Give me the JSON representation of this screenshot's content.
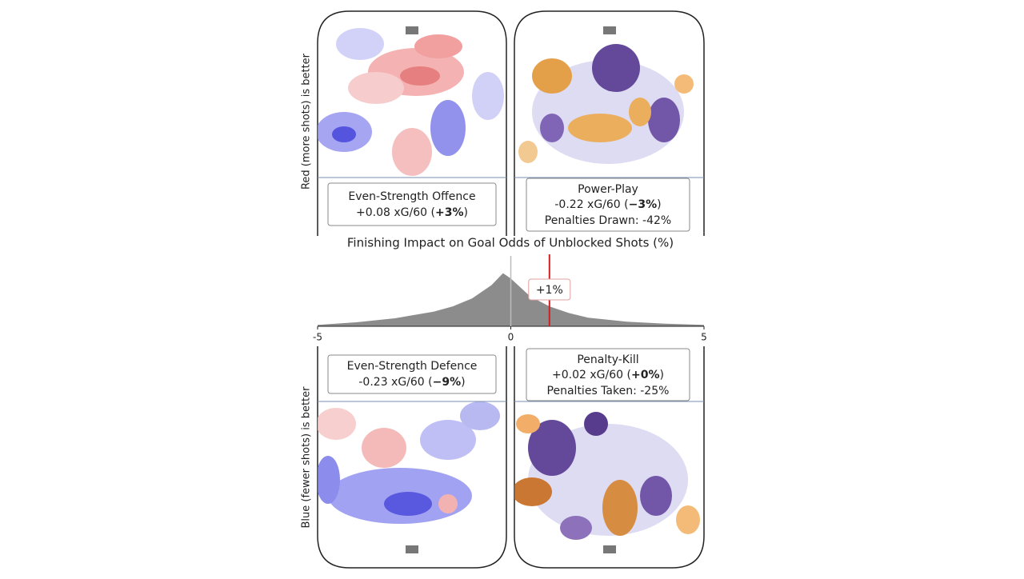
{
  "panels": [
    {
      "lines": [
        "Even-Strength Offence",
        {
          "pre": "+0.08 xG/60 (",
          "bold": "+3%",
          "post": ")"
        }
      ]
    },
    {
      "lines": [
        "Power-Play",
        {
          "pre": "-0.22 xG/60 (",
          "bold": "−3%",
          "post": ")"
        },
        "Penalties Drawn: -42%"
      ]
    },
    {
      "lines": [
        "Even-Strength Defence",
        {
          "pre": "-0.23 xG/60 (",
          "bold": "−9%",
          "post": ")"
        }
      ]
    },
    {
      "lines": [
        "Penalty-Kill",
        {
          "pre": "+0.02 xG/60 (",
          "bold": "+0%",
          "post": ")"
        },
        "Penalties Taken: -25%"
      ]
    }
  ],
  "side_labels": [
    "Red (more shots) is better",
    "Blue (fewer shots) is better"
  ],
  "chart_data": {
    "type": "area",
    "title": "Finishing Impact on Goal Odds of Unblocked Shots (%)",
    "x": [
      -5,
      -4,
      -3,
      -2,
      -1.5,
      -1,
      -0.5,
      -0.2,
      0,
      0.5,
      1,
      1.5,
      2,
      3,
      4,
      5
    ],
    "values": [
      0.02,
      0.06,
      0.12,
      0.22,
      0.3,
      0.42,
      0.62,
      0.8,
      0.72,
      0.45,
      0.3,
      0.2,
      0.13,
      0.07,
      0.04,
      0.02
    ],
    "color": "#8c8c8c",
    "xlim": [
      -5,
      5
    ],
    "xticks": [
      -5,
      0,
      5
    ],
    "ylim": [
      0,
      1
    ],
    "marker": {
      "value": 1,
      "label": "+1%",
      "color": "#cc2222"
    }
  }
}
